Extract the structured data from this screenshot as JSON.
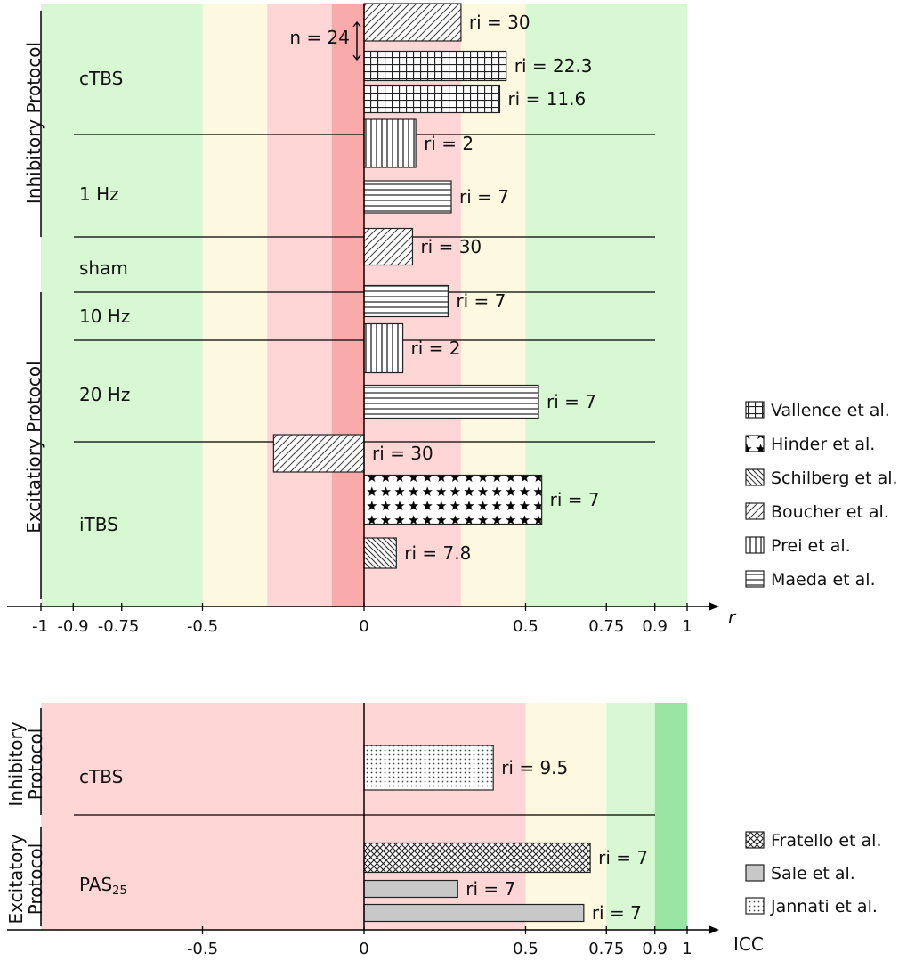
{
  "chart_data": [
    {
      "type": "bar",
      "orientation": "horizontal",
      "xlabel": "r",
      "xlim": [
        -1,
        1
      ],
      "ticks": [
        -1,
        -0.9,
        -0.75,
        -0.5,
        0,
        0.5,
        0.75,
        0.9,
        1
      ],
      "tick_labels": [
        "-1",
        "-0.9",
        "-0.75",
        "-0.5",
        "0",
        "0.5",
        "0.75",
        "0.9",
        "1"
      ],
      "bands": [
        {
          "from": -1,
          "to": -0.5,
          "color": "#d8f8d4"
        },
        {
          "from": -0.5,
          "to": -0.3,
          "color": "#fdf8e0"
        },
        {
          "from": -0.3,
          "to": -0.1,
          "color": "#ffd6d6"
        },
        {
          "from": -0.1,
          "to": 0,
          "color": "#f9aaaa"
        },
        {
          "from": 0,
          "to": 0.3,
          "color": "#ffd6d6"
        },
        {
          "from": 0.3,
          "to": 0.5,
          "color": "#fdf8e0"
        },
        {
          "from": 0.5,
          "to": 1,
          "color": "#d8f8d4"
        }
      ],
      "protocol_groups": [
        "Inhibitory Protocol",
        "Excitatiory Protocol"
      ],
      "groups": [
        {
          "name": "cTBS",
          "bars": [
            {
              "study": "Boucher et al.",
              "value": 0.3,
              "label": "ri = 30"
            },
            {
              "study": "Vallence et al.",
              "value": 0.44,
              "label": "ri = 22.3"
            },
            {
              "study": "Vallence et al.",
              "value": 0.42,
              "label": "ri = 11.6"
            }
          ]
        },
        {
          "name": "1 Hz",
          "bars": [
            {
              "study": "Prei et al.",
              "value": 0.16,
              "label": "ri = 2"
            },
            {
              "study": "Maeda et al.",
              "value": 0.27,
              "label": "ri = 7"
            }
          ]
        },
        {
          "name": "sham",
          "bars": [
            {
              "study": "Boucher et al.",
              "value": 0.15,
              "label": "ri = 30"
            }
          ]
        },
        {
          "name": "10 Hz",
          "bars": [
            {
              "study": "Maeda et al.",
              "value": 0.26,
              "label": "ri = 7"
            }
          ]
        },
        {
          "name": "20 Hz",
          "bars": [
            {
              "study": "Prei et al.",
              "value": 0.12,
              "label": "ri = 2"
            },
            {
              "study": "Maeda et al.",
              "value": 0.54,
              "label": "ri = 7"
            }
          ]
        },
        {
          "name": "iTBS",
          "bars": [
            {
              "study": "Boucher et al.",
              "value": -0.28,
              "label": "ri = 30"
            },
            {
              "study": "Hinder et al.",
              "value": 0.55,
              "label": "ri = 7"
            },
            {
              "study": "Schilberg et al.",
              "value": 0.1,
              "label": "ri = 7.8"
            }
          ]
        }
      ],
      "annotation": "n = 24",
      "legend": {
        "placement": "right",
        "entries": [
          "Vallence et al.",
          "Hinder et al.",
          "Schilberg et al.",
          "Boucher et al.",
          "Prei et al.",
          "Maeda et al."
        ]
      }
    },
    {
      "type": "bar",
      "orientation": "horizontal",
      "xlabel": "ICC",
      "xlim": [
        -1,
        1
      ],
      "ticks": [
        -0.5,
        0,
        0.5,
        0.75,
        0.9,
        1
      ],
      "tick_labels": [
        "-0.5",
        "0",
        "0.5",
        "0.75",
        "0.9",
        "1"
      ],
      "bands": [
        {
          "from": -1,
          "to": 0.5,
          "color": "#ffd6d6"
        },
        {
          "from": 0.5,
          "to": 0.75,
          "color": "#fdf8e0"
        },
        {
          "from": 0.75,
          "to": 0.9,
          "color": "#d8f8d4"
        },
        {
          "from": 0.9,
          "to": 1,
          "color": "#99e6a4"
        }
      ],
      "protocol_groups": [
        "Inhibitory Protocol",
        "Excitatory Protocol"
      ],
      "groups": [
        {
          "name": "cTBS",
          "bars": [
            {
              "study": "Jannati et al.",
              "value": 0.4,
              "label": "ri = 9.5"
            }
          ]
        },
        {
          "name": "PAS",
          "sub": "25",
          "bars": [
            {
              "study": "Fratello et al.",
              "value": 0.7,
              "label": "ri = 7"
            },
            {
              "study": "Sale et al.",
              "value": 0.29,
              "label": "ri = 7"
            },
            {
              "study": "Sale et al.",
              "value": 0.68,
              "label": "ri = 7"
            }
          ]
        }
      ],
      "legend": {
        "placement": "right",
        "entries": [
          "Fratello et al.",
          "Sale et al.",
          "Jannati et al."
        ]
      }
    }
  ]
}
